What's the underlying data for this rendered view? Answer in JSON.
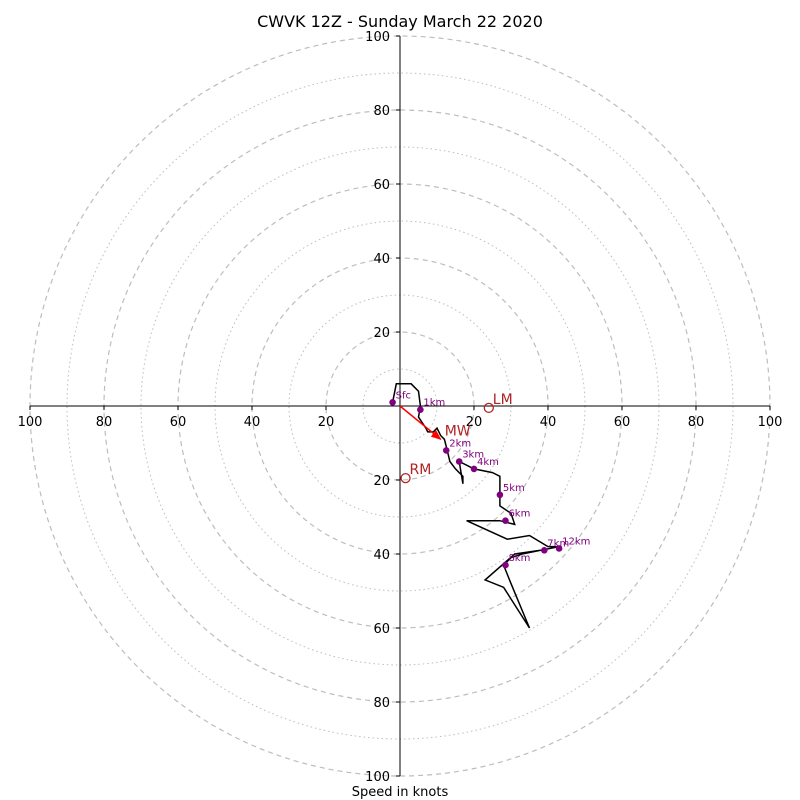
{
  "chart_data": {
    "type": "hodograph",
    "title": "CWVK 12Z - Sunday March 22 2020",
    "xlabel": "Speed in knots",
    "range": 100,
    "ring_step_dashed": 20,
    "ring_step_dotted": 10,
    "x_tick_labels": [
      "100",
      "80",
      "60",
      "40",
      "20",
      "20",
      "40",
      "60",
      "80",
      "100"
    ],
    "x_tick_values": [
      -100,
      -80,
      -60,
      -40,
      -20,
      20,
      40,
      60,
      80,
      100
    ],
    "y_tick_labels": [
      "100",
      "80",
      "60",
      "40",
      "20",
      "20",
      "40",
      "60",
      "80",
      "100"
    ],
    "y_tick_values": [
      100,
      80,
      60,
      40,
      20,
      -20,
      -40,
      -60,
      -80,
      -100
    ],
    "colors": {
      "hodograph_line": "#000000",
      "height_marker": "#800080",
      "storm_motion": "#b22222",
      "mean_wind_arrow": "#ff0000",
      "grid": "#bdbdbd"
    },
    "hodograph": [
      [
        -2,
        1
      ],
      [
        -1,
        6
      ],
      [
        3,
        6
      ],
      [
        5,
        4
      ],
      [
        5.5,
        0
      ],
      [
        5,
        -3
      ],
      [
        7,
        -6
      ],
      [
        7.5,
        -7
      ],
      [
        9,
        -7
      ],
      [
        10,
        -6
      ],
      [
        11,
        -8
      ],
      [
        12,
        -9
      ],
      [
        12.5,
        -11
      ],
      [
        13,
        -13
      ],
      [
        13.5,
        -15
      ],
      [
        15,
        -17
      ],
      [
        17,
        -19
      ],
      [
        17,
        -21
      ],
      [
        16,
        -15
      ],
      [
        20,
        -17
      ],
      [
        25,
        -18
      ],
      [
        27,
        -19
      ],
      [
        27,
        -24
      ],
      [
        27,
        -27
      ],
      [
        30,
        -29
      ],
      [
        31,
        -32
      ],
      [
        27,
        -31
      ],
      [
        18,
        -31
      ],
      [
        29,
        -36
      ],
      [
        35,
        -35
      ],
      [
        40,
        -38
      ],
      [
        43,
        -38
      ],
      [
        38,
        -39
      ],
      [
        31,
        -40
      ],
      [
        23,
        -47
      ],
      [
        28,
        -49
      ],
      [
        35,
        -60
      ],
      [
        30,
        -48
      ],
      [
        28,
        -43
      ],
      [
        30,
        -41
      ],
      [
        33,
        -40
      ],
      [
        38,
        -39
      ],
      [
        43,
        -38
      ]
    ],
    "height_points": [
      {
        "label": "Sfc",
        "u": -2,
        "v": 1
      },
      {
        "label": "1km",
        "u": 5.5,
        "v": -1
      },
      {
        "label": "2km",
        "u": 12.5,
        "v": -12
      },
      {
        "label": "3km",
        "u": 16,
        "v": -15
      },
      {
        "label": "4km",
        "u": 20,
        "v": -17
      },
      {
        "label": "5km",
        "u": 27,
        "v": -24
      },
      {
        "label": "6km",
        "u": 28.5,
        "v": -31
      },
      {
        "label": "7km",
        "u": 39,
        "v": -39
      },
      {
        "label": "8km",
        "u": 28.5,
        "v": -43
      },
      {
        "label": "12km",
        "u": 43,
        "v": -38.5
      }
    ],
    "storm_motion": [
      {
        "label": "LM",
        "u": 24,
        "v": -0.5
      },
      {
        "label": "RM",
        "u": 1.5,
        "v": -19.5
      },
      {
        "label": "MW",
        "u": 11,
        "v": -9
      }
    ]
  }
}
